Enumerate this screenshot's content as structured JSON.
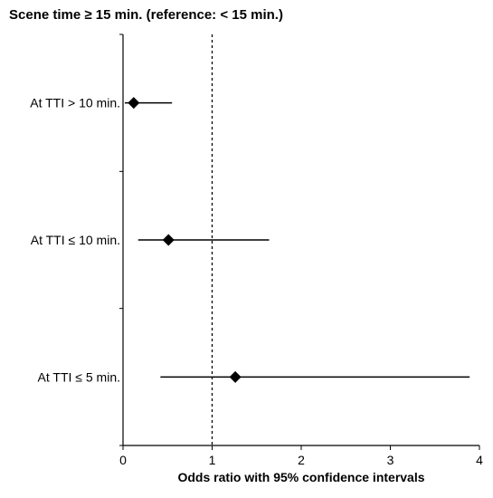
{
  "chart_data": {
    "type": "scatter",
    "title": "Scene time ≥ 15 min. (reference: < 15 min.)",
    "xlabel": "Odds ratio with 95% confidence intervals",
    "xlim": [
      0,
      4
    ],
    "xticks": [
      "0",
      "1",
      "2",
      "3",
      "4"
    ],
    "reference_line": 1,
    "grid": false,
    "categories": [
      "At TTI > 10 min.",
      "At TTI ≤ 10 min.",
      "At TTI ≤ 5 min."
    ],
    "points": [
      {
        "label": "At TTI > 10 min.",
        "or": 0.12,
        "ci_low": 0.02,
        "ci_high": 0.55
      },
      {
        "label": "At TTI ≤ 10 min.",
        "or": 0.51,
        "ci_low": 0.17,
        "ci_high": 1.64
      },
      {
        "label": "At TTI ≤ 5 min.",
        "or": 1.26,
        "ci_low": 0.42,
        "ci_high": 3.89
      }
    ]
  }
}
